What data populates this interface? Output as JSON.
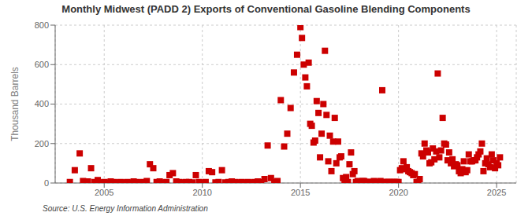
{
  "chart_data": {
    "type": "scatter",
    "title": "Monthly Midwest (PADD 2) Exports of Conventional Gasoline Blending Components",
    "y_label": "Thousand Barrels",
    "annotations": [
      "Source: U.S. Energy Information Administration"
    ],
    "color": "#cc0000",
    "marker": "square",
    "grid": true,
    "xlim": [
      2002.5,
      2026.0
    ],
    "xticks": [
      2005,
      2010,
      2015,
      2020,
      2025
    ],
    "ylim": [
      0,
      800
    ],
    "yticks": [
      0,
      200,
      400,
      600,
      800
    ],
    "x": [
      2003.25,
      2003.5,
      2003.75,
      2003.92,
      2004.08,
      2004.17,
      2004.33,
      2004.5,
      2004.67,
      2004.83,
      2005.0,
      2005.17,
      2005.33,
      2005.5,
      2005.67,
      2005.83,
      2006.0,
      2006.17,
      2006.33,
      2006.5,
      2006.67,
      2006.83,
      2007.0,
      2007.17,
      2007.33,
      2007.5,
      2007.67,
      2007.83,
      2008.0,
      2008.17,
      2008.33,
      2008.5,
      2008.67,
      2008.83,
      2009.0,
      2009.17,
      2009.33,
      2009.5,
      2009.67,
      2009.83,
      2010.0,
      2010.17,
      2010.33,
      2010.5,
      2010.67,
      2010.83,
      2011.0,
      2011.17,
      2011.33,
      2011.5,
      2011.67,
      2011.83,
      2012.0,
      2012.17,
      2012.33,
      2012.5,
      2012.67,
      2012.83,
      2013.0,
      2013.17,
      2013.33,
      2013.5,
      2013.67,
      2013.83,
      2014.0,
      2014.17,
      2014.33,
      2014.5,
      2014.67,
      2014.83,
      2015.0,
      2015.08,
      2015.17,
      2015.25,
      2015.33,
      2015.42,
      2015.5,
      2015.58,
      2015.67,
      2015.75,
      2015.83,
      2015.92,
      2016.0,
      2016.08,
      2016.17,
      2016.25,
      2016.33,
      2016.42,
      2016.5,
      2016.58,
      2016.67,
      2016.75,
      2016.83,
      2016.92,
      2017.0,
      2017.08,
      2017.17,
      2017.25,
      2017.33,
      2017.42,
      2017.5,
      2017.58,
      2017.67,
      2017.75,
      2017.83,
      2017.92,
      2018.0,
      2018.08,
      2018.17,
      2018.25,
      2018.33,
      2018.42,
      2018.5,
      2018.58,
      2018.67,
      2018.75,
      2018.83,
      2018.92,
      2019.0,
      2019.08,
      2019.17,
      2019.25,
      2019.33,
      2019.42,
      2019.5,
      2019.58,
      2019.67,
      2019.75,
      2019.83,
      2019.92,
      2020.0,
      2020.08,
      2020.17,
      2020.25,
      2020.33,
      2020.42,
      2020.5,
      2020.58,
      2020.67,
      2020.75,
      2020.83,
      2020.92,
      2021.0,
      2021.08,
      2021.17,
      2021.25,
      2021.33,
      2021.42,
      2021.5,
      2021.58,
      2021.67,
      2021.75,
      2021.83,
      2021.92,
      2022.0,
      2022.08,
      2022.17,
      2022.25,
      2022.33,
      2022.42,
      2022.5,
      2022.58,
      2022.67,
      2022.75,
      2022.83,
      2022.92,
      2023.0,
      2023.08,
      2023.17,
      2023.25,
      2023.33,
      2023.42,
      2023.5,
      2023.58,
      2023.67,
      2023.75,
      2023.83,
      2023.92,
      2024.0,
      2024.08,
      2024.17,
      2024.25,
      2024.33,
      2024.42,
      2024.5,
      2024.58,
      2024.67,
      2024.75,
      2024.83,
      2024.92,
      2025.0,
      2025.08,
      2025.17
    ],
    "values": [
      5,
      65,
      150,
      10,
      5,
      8,
      75,
      5,
      15,
      3,
      5,
      3,
      8,
      5,
      3,
      5,
      3,
      5,
      3,
      8,
      5,
      3,
      5,
      10,
      95,
      75,
      5,
      8,
      3,
      5,
      40,
      50,
      8,
      5,
      3,
      5,
      5,
      3,
      40,
      5,
      3,
      5,
      60,
      55,
      3,
      5,
      65,
      3,
      5,
      8,
      5,
      3,
      5,
      3,
      5,
      3,
      5,
      8,
      5,
      20,
      190,
      25,
      5,
      10,
      420,
      185,
      250,
      380,
      560,
      650,
      790,
      735,
      600,
      535,
      490,
      610,
      300,
      290,
      205,
      215,
      415,
      355,
      130,
      250,
      400,
      670,
      345,
      110,
      240,
      60,
      210,
      330,
      100,
      210,
      130,
      135,
      25,
      15,
      30,
      5,
      95,
      155,
      45,
      60,
      5,
      10,
      5,
      5,
      10,
      10,
      5,
      5,
      5,
      5,
      5,
      10,
      5,
      5,
      5,
      10,
      470,
      5,
      5,
      5,
      5,
      5,
      5,
      5,
      5,
      5,
      5,
      65,
      75,
      110,
      70,
      80,
      60,
      55,
      50,
      40,
      45,
      5,
      5,
      20,
      150,
      135,
      200,
      165,
      155,
      100,
      105,
      175,
      120,
      160,
      555,
      130,
      165,
      330,
      200,
      195,
      115,
      155,
      100,
      120,
      85,
      95,
      90,
      60,
      50,
      70,
      110,
      55,
      65,
      145,
      110,
      110,
      115,
      115,
      130,
      145,
      160,
      200,
      60,
      100,
      125,
      95,
      80,
      145,
      115,
      75,
      100,
      90,
      130
    ]
  }
}
